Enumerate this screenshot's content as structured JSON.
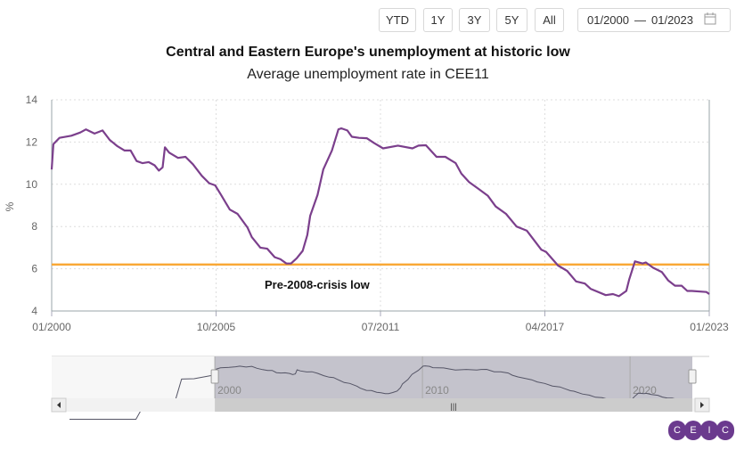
{
  "range_buttons": [
    "YTD",
    "1Y",
    "3Y",
    "5Y",
    "All"
  ],
  "date_range": {
    "from": "01/2000",
    "separator": "—",
    "to": "01/2023",
    "icon": "calendar-icon"
  },
  "colors": {
    "series": "#7b3f8c",
    "reference": "#f9a836",
    "navigator_series": "#555566",
    "navigator_selected": "#c4c3cc",
    "logo": "#6b3a8e"
  },
  "logo_text": "CEIC",
  "chart_data": {
    "type": "line",
    "title": "Central and Eastern Europe's unemployment at historic low",
    "subtitle": "Average unemployment rate in CEE11",
    "ylabel": "%",
    "ylim": [
      4,
      14
    ],
    "yticks": [
      4,
      6,
      8,
      10,
      12,
      14
    ],
    "xlim": [
      "01/2000",
      "01/2023"
    ],
    "xticks": [
      {
        "t": 2000,
        "label": "01/2000"
      },
      {
        "t": 2005.75,
        "label": "10/2005"
      },
      {
        "t": 2011.5,
        "label": "07/2011"
      },
      {
        "t": 2017.25,
        "label": "04/2017"
      },
      {
        "t": 2023,
        "label": "01/2023"
      }
    ],
    "grid": true,
    "reference_line": {
      "value": 6.2,
      "label": "Pre-2008-crisis low"
    },
    "series": [
      {
        "x": [
          2000,
          2000.06,
          2000.27,
          2000.69,
          2001,
          2001.2,
          2001.5,
          2001.78,
          2002.03,
          2002.3,
          2002.55,
          2002.76,
          2002.97,
          2003.18,
          2003.39,
          2003.6,
          2003.75,
          2003.88,
          2003.96,
          2004.11,
          2004.42,
          2004.68,
          2004.94,
          2005.25,
          2005.51,
          2005.72,
          2005.92,
          2006.23,
          2006.5,
          2006.85,
          2007,
          2007.3,
          2007.54,
          2007.8,
          2008,
          2008.21,
          2008.37,
          2008.57,
          2008.78,
          2008.94,
          2009.04,
          2009.3,
          2009.5,
          2009.8,
          2010.03,
          2010.13,
          2010.34,
          2010.5,
          2010.75,
          2011.02,
          2011.28,
          2011.59,
          2012.11,
          2012.62,
          2012.83,
          2013.09,
          2013.46,
          2013.77,
          2014.13,
          2014.33,
          2014.6,
          2014.91,
          2015.26,
          2015.53,
          2015.89,
          2016.26,
          2016.62,
          2017.13,
          2017.29,
          2017.71,
          2018.03,
          2018.34,
          2018.65,
          2018.85,
          2019.38,
          2019.63,
          2019.84,
          2020.1,
          2020.2,
          2020.4,
          2020.67,
          2020.78,
          2021.03,
          2021.34,
          2021.56,
          2021.8,
          2022.03,
          2022.23,
          2022.39,
          2022.9,
          2023
        ],
        "values": [
          10.7,
          11.9,
          12.2,
          12.3,
          12.45,
          12.6,
          12.4,
          12.55,
          12.1,
          11.8,
          11.6,
          11.6,
          11.1,
          11.0,
          11.05,
          10.9,
          10.65,
          10.8,
          11.75,
          11.5,
          11.25,
          11.3,
          10.95,
          10.4,
          10.05,
          9.95,
          9.5,
          8.8,
          8.6,
          7.95,
          7.5,
          7.0,
          6.95,
          6.55,
          6.45,
          6.25,
          6.25,
          6.5,
          6.85,
          7.6,
          8.5,
          9.5,
          10.7,
          11.6,
          12.6,
          12.65,
          12.55,
          12.25,
          12.2,
          12.18,
          11.95,
          11.7,
          11.83,
          11.7,
          11.83,
          11.85,
          11.3,
          11.3,
          11.0,
          10.5,
          10.1,
          9.8,
          9.45,
          8.95,
          8.6,
          8.0,
          7.8,
          6.9,
          6.8,
          6.15,
          5.9,
          5.4,
          5.3,
          5.05,
          4.75,
          4.8,
          4.7,
          4.95,
          5.5,
          6.35,
          6.25,
          6.3,
          6.05,
          5.85,
          5.45,
          5.2,
          5.2,
          4.95,
          4.95,
          4.9,
          4.8
        ]
      }
    ],
    "navigator": {
      "labels": [
        "2000",
        "2010",
        "2020"
      ],
      "pre_2000": {
        "x": [
          1993,
          1996.2,
          1996.5,
          1997.1,
          1997.3,
          1998.1,
          1998.4,
          1999,
          1999.9
        ],
        "values": [
          0.3,
          0.3,
          2.9,
          2.9,
          4.7,
          4.7,
          9.6,
          9.7,
          10.5
        ]
      },
      "selected": [
        "01/2000",
        "01/2023"
      ]
    }
  }
}
